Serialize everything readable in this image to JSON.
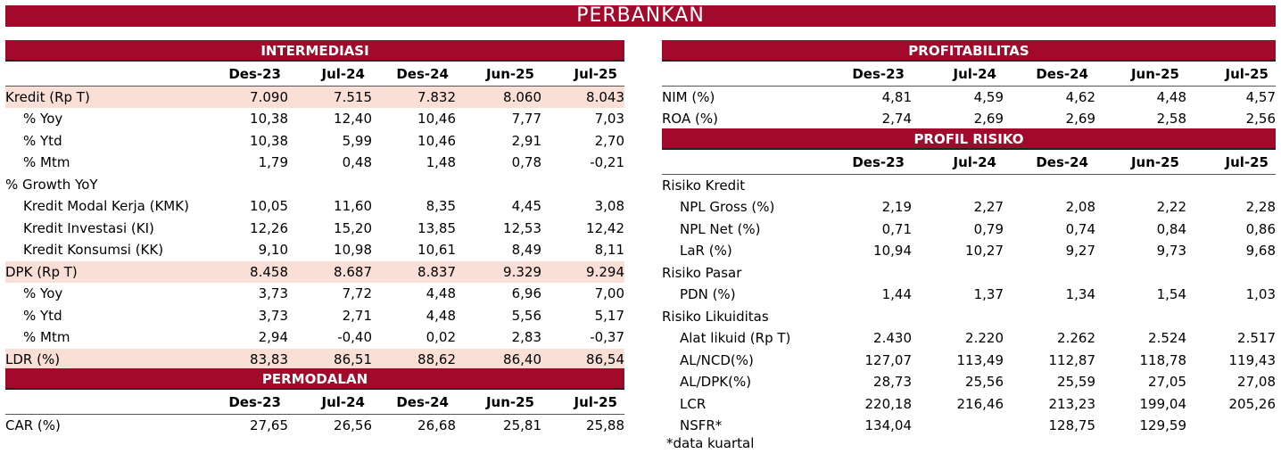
{
  "title": "PERBANKAN",
  "columns": [
    "Des-23",
    "Jul-24",
    "Des-24",
    "Jun-25",
    "Jul-25"
  ],
  "intermediasi": {
    "header": "INTERMEDIASI",
    "rows": [
      {
        "label": "Kredit (Rp T)",
        "values": [
          "7.090",
          "7.515",
          "7.832",
          "8.060",
          "8.043"
        ]
      },
      {
        "label": "% Yoy",
        "values": [
          "10,38",
          "12,40",
          "10,46",
          "7,77",
          "7,03"
        ]
      },
      {
        "label": "% Ytd",
        "values": [
          "10,38",
          "5,99",
          "10,46",
          "2,91",
          "2,70"
        ]
      },
      {
        "label": "% Mtm",
        "values": [
          "1,79",
          "0,48",
          "1,48",
          "0,78",
          "-0,21"
        ]
      },
      {
        "label": "% Growth YoY",
        "values": [
          "",
          "",
          "",
          "",
          ""
        ]
      },
      {
        "label": "Kredit Modal Kerja (KMK)",
        "values": [
          "10,05",
          "11,60",
          "8,35",
          "4,45",
          "3,08"
        ]
      },
      {
        "label": "Kredit Investasi (KI)",
        "values": [
          "12,26",
          "15,20",
          "13,85",
          "12,53",
          "12,42"
        ]
      },
      {
        "label": "Kredit Konsumsi (KK)",
        "values": [
          "9,10",
          "10,98",
          "10,61",
          "8,49",
          "8,11"
        ]
      },
      {
        "label": "DPK (Rp T)",
        "values": [
          "8.458",
          "8.687",
          "8.837",
          "9.329",
          "9.294"
        ]
      },
      {
        "label": "% Yoy",
        "values": [
          "3,73",
          "7,72",
          "4,48",
          "6,96",
          "7,00"
        ]
      },
      {
        "label": "% Ytd",
        "values": [
          "3,73",
          "2,71",
          "4,48",
          "5,56",
          "5,17"
        ]
      },
      {
        "label": "% Mtm",
        "values": [
          "2,94",
          "-0,40",
          "0,02",
          "2,83",
          "-0,37"
        ]
      },
      {
        "label": "LDR (%)",
        "values": [
          "83,83",
          "86,51",
          "88,62",
          "86,40",
          "86,54"
        ]
      }
    ]
  },
  "permodalan": {
    "header": "PERMODALAN",
    "rows": [
      {
        "label": "CAR (%)",
        "values": [
          "27,65",
          "26,56",
          "26,68",
          "25,81",
          "25,88"
        ]
      }
    ]
  },
  "profitabilitas": {
    "header": "PROFITABILITAS",
    "rows": [
      {
        "label": "NIM (%)",
        "values": [
          "4,81",
          "4,59",
          "4,62",
          "4,48",
          "4,57"
        ]
      },
      {
        "label": "ROA (%)",
        "values": [
          "2,74",
          "2,69",
          "2,69",
          "2,58",
          "2,56"
        ]
      }
    ]
  },
  "profil_risiko": {
    "header": "PROFIL RISIKO",
    "rows": [
      {
        "label": "Risiko Kredit",
        "values": [
          "",
          "",
          "",
          "",
          ""
        ]
      },
      {
        "label": "NPL Gross (%)",
        "values": [
          "2,19",
          "2,27",
          "2,08",
          "2,22",
          "2,28"
        ]
      },
      {
        "label": "NPL Net (%)",
        "values": [
          "0,71",
          "0,79",
          "0,74",
          "0,84",
          "0,86"
        ]
      },
      {
        "label": "LaR (%)",
        "values": [
          "10,94",
          "10,27",
          "9,27",
          "9,73",
          "9,68"
        ]
      },
      {
        "label": "Risiko Pasar",
        "values": [
          "",
          "",
          "",
          "",
          ""
        ]
      },
      {
        "label": "PDN (%)",
        "values": [
          "1,44",
          "1,37",
          "1,34",
          "1,54",
          "1,03"
        ]
      },
      {
        "label": "Risiko Likuiditas",
        "values": [
          "",
          "",
          "",
          "",
          ""
        ]
      },
      {
        "label": "Alat likuid (Rp T)",
        "values": [
          "2.430",
          "2.220",
          "2.262",
          "2.524",
          "2.517"
        ]
      },
      {
        "label": "AL/NCD(%)",
        "values": [
          "127,07",
          "113,49",
          "112,87",
          "118,78",
          "119,43"
        ]
      },
      {
        "label": "AL/DPK(%)",
        "values": [
          "28,73",
          "25,56",
          "25,59",
          "27,05",
          "27,08"
        ]
      },
      {
        "label": "LCR",
        "values": [
          "220,18",
          "216,46",
          "213,23",
          "199,04",
          "205,26"
        ]
      },
      {
        "label": "NSFR*",
        "values": [
          "134,04",
          "",
          "128,75",
          "129,59",
          ""
        ]
      }
    ]
  },
  "footnote": "*data kuartal"
}
